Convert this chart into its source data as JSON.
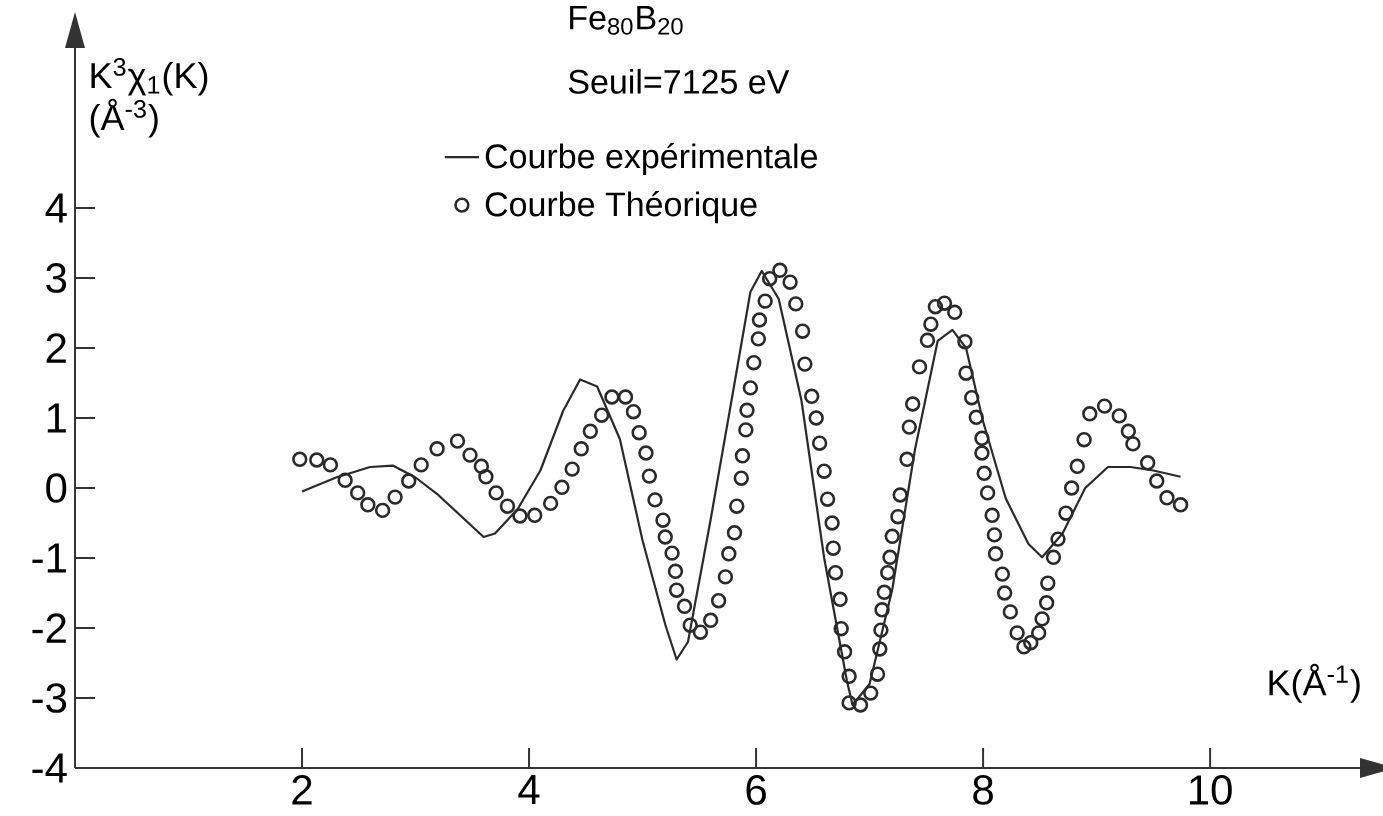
{
  "chart_data": {
    "type": "line",
    "title": "Fe$_{80}$B$_{20}$",
    "subtitle": "Seuil=7125 eV",
    "xlabel": "K(Å$^{-1}$)",
    "ylabel": "K$^{3}$χ$_{1}$(K) (Å$^{-3}$)",
    "xlim": [
      0,
      11.4
    ],
    "ylim": [
      -4,
      6.4
    ],
    "xticks": [
      2,
      4,
      6,
      8,
      10
    ],
    "yticks": [
      -4,
      -3,
      -2,
      -1,
      0,
      1,
      2,
      3,
      4
    ],
    "legend": "top",
    "series": [
      {
        "name": "Courbe expérimentale",
        "marker": "none",
        "line_style": "solid",
        "color": "#2a2a2a",
        "x": [
          2.0,
          2.3,
          2.6,
          2.8,
          3.0,
          3.2,
          3.4,
          3.6,
          3.7,
          3.9,
          4.1,
          4.3,
          4.45,
          4.6,
          4.8,
          5.0,
          5.2,
          5.3,
          5.4,
          5.6,
          5.8,
          5.95,
          6.05,
          6.2,
          6.4,
          6.6,
          6.8,
          6.85,
          7.0,
          7.2,
          7.4,
          7.6,
          7.73,
          7.85,
          8.0,
          8.2,
          8.4,
          8.52,
          8.7,
          8.9,
          9.1,
          9.3,
          9.5,
          9.74
        ],
        "values": [
          -0.05,
          0.15,
          0.3,
          0.32,
          0.15,
          -0.1,
          -0.4,
          -0.7,
          -0.65,
          -0.3,
          0.25,
          1.1,
          1.55,
          1.45,
          0.7,
          -0.75,
          -1.95,
          -2.45,
          -2.2,
          -0.45,
          1.4,
          2.8,
          3.1,
          2.7,
          1.25,
          -1.0,
          -2.75,
          -3.1,
          -2.8,
          -1.45,
          0.55,
          2.1,
          2.26,
          2.0,
          0.95,
          -0.15,
          -0.8,
          -0.99,
          -0.65,
          0.0,
          0.3,
          0.3,
          0.25,
          0.16
        ]
      },
      {
        "name": "Courbe Théorique",
        "type": "scatter",
        "marker": "circle",
        "color": "#2a2a2a",
        "x": [
          1.98,
          2.13,
          2.25,
          2.38,
          2.49,
          2.58,
          2.71,
          2.82,
          2.94,
          3.05,
          3.19,
          3.37,
          3.48,
          3.58,
          3.62,
          3.71,
          3.81,
          3.92,
          4.05,
          4.19,
          4.29,
          4.38,
          4.46,
          4.54,
          4.64,
          4.73,
          4.85,
          4.92,
          4.97,
          5.03,
          5.06,
          5.11,
          5.18,
          5.2,
          5.26,
          5.29,
          5.3,
          5.37,
          5.42,
          5.51,
          5.6,
          5.67,
          5.73,
          5.76,
          5.81,
          5.83,
          5.87,
          5.88,
          5.91,
          5.92,
          5.95,
          5.98,
          6.02,
          6.03,
          6.08,
          6.12,
          6.21,
          6.3,
          6.35,
          6.41,
          6.43,
          6.49,
          6.53,
          6.56,
          6.6,
          6.63,
          6.67,
          6.68,
          6.7,
          6.74,
          6.75,
          6.78,
          6.82,
          6.82,
          6.92,
          7.01,
          7.07,
          7.09,
          7.1,
          7.11,
          7.13,
          7.16,
          7.18,
          7.2,
          7.25,
          7.27,
          7.33,
          7.35,
          7.38,
          7.44,
          7.51,
          7.54,
          7.58,
          7.66,
          7.75,
          7.84,
          7.85,
          7.9,
          7.94,
          7.99,
          7.99,
          8.01,
          8.04,
          8.08,
          8.1,
          8.11,
          8.17,
          8.19,
          8.24,
          8.3,
          8.36,
          8.42,
          8.49,
          8.52,
          8.56,
          8.57,
          8.62,
          8.66,
          8.73,
          8.78,
          8.83,
          8.89,
          8.94,
          9.07,
          9.2,
          9.28,
          9.32,
          9.45,
          9.53,
          9.62,
          9.74
        ],
        "values": [
          0.41,
          0.4,
          0.33,
          0.11,
          -0.07,
          -0.24,
          -0.32,
          -0.13,
          0.1,
          0.33,
          0.56,
          0.67,
          0.47,
          0.31,
          0.16,
          -0.07,
          -0.26,
          -0.4,
          -0.39,
          -0.22,
          0.01,
          0.27,
          0.56,
          0.81,
          1.04,
          1.3,
          1.3,
          1.09,
          0.79,
          0.5,
          0.17,
          -0.17,
          -0.46,
          -0.7,
          -0.93,
          -1.19,
          -1.46,
          -1.69,
          -1.96,
          -2.06,
          -1.89,
          -1.61,
          -1.27,
          -0.94,
          -0.64,
          -0.26,
          0.14,
          0.46,
          0.83,
          1.11,
          1.43,
          1.79,
          2.13,
          2.4,
          2.67,
          2.99,
          3.11,
          2.94,
          2.63,
          2.24,
          1.77,
          1.31,
          1.0,
          0.64,
          0.24,
          -0.16,
          -0.5,
          -0.86,
          -1.21,
          -1.59,
          -2.01,
          -2.34,
          -2.69,
          -3.07,
          -3.1,
          -2.93,
          -2.66,
          -2.3,
          -2.03,
          -1.74,
          -1.49,
          -1.21,
          -0.99,
          -0.69,
          -0.41,
          -0.1,
          0.41,
          0.87,
          1.2,
          1.73,
          2.11,
          2.34,
          2.59,
          2.64,
          2.51,
          2.09,
          1.64,
          1.29,
          1.01,
          0.71,
          0.5,
          0.21,
          -0.07,
          -0.39,
          -0.67,
          -0.94,
          -1.23,
          -1.5,
          -1.77,
          -2.07,
          -2.27,
          -2.21,
          -2.07,
          -1.87,
          -1.64,
          -1.36,
          -0.99,
          -0.73,
          -0.36,
          0.0,
          0.31,
          0.69,
          1.06,
          1.17,
          1.03,
          0.81,
          0.63,
          0.36,
          0.1,
          -0.14,
          -0.24
        ]
      }
    ]
  }
}
